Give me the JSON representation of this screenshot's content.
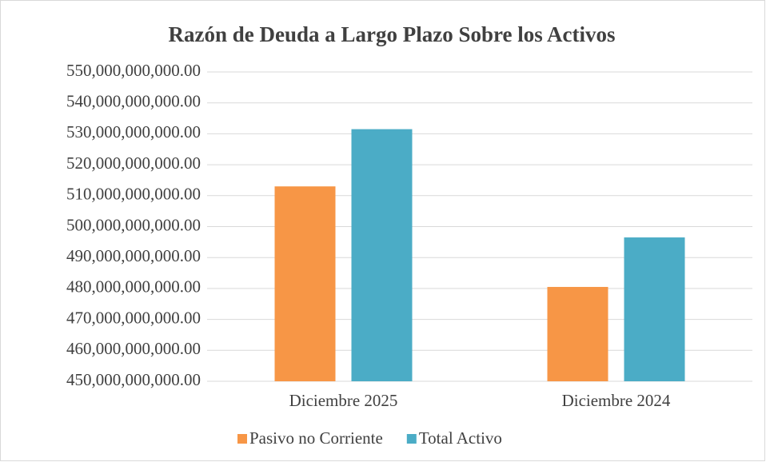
{
  "chart_data": {
    "type": "bar",
    "title": "Razón de Deuda a Largo Plazo Sobre los Activos",
    "categories": [
      "Diciembre 2025",
      "Diciembre 2024"
    ],
    "series": [
      {
        "name": "Pasivo no Corriente",
        "color": "#f79646",
        "values": [
          513000000000,
          480500000000
        ]
      },
      {
        "name": "Total Activo",
        "color": "#4bacc6",
        "values": [
          531500000000,
          496500000000
        ]
      }
    ],
    "ylim": [
      450000000000,
      550000000000
    ],
    "yticks": [
      {
        "value": 450000000000,
        "label": "450,000,000,000.00"
      },
      {
        "value": 460000000000,
        "label": "460,000,000,000.00"
      },
      {
        "value": 470000000000,
        "label": "470,000,000,000.00"
      },
      {
        "value": 480000000000,
        "label": "480,000,000,000.00"
      },
      {
        "value": 490000000000,
        "label": "490,000,000,000.00"
      },
      {
        "value": 500000000000,
        "label": "500,000,000,000.00"
      },
      {
        "value": 510000000000,
        "label": "510,000,000,000.00"
      },
      {
        "value": 520000000000,
        "label": "520,000,000,000.00"
      },
      {
        "value": 530000000000,
        "label": "530,000,000,000.00"
      },
      {
        "value": 540000000000,
        "label": "540,000,000,000.00"
      },
      {
        "value": 550000000000,
        "label": "550,000,000,000.00"
      }
    ],
    "grid": true,
    "legend": "bottom"
  }
}
